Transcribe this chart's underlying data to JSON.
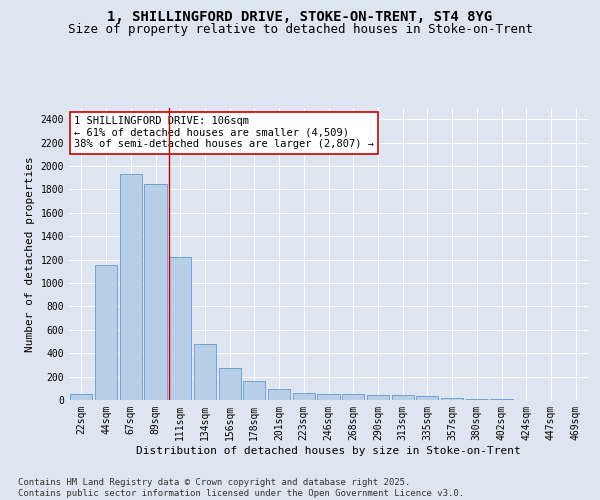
{
  "title_line1": "1, SHILLINGFORD DRIVE, STOKE-ON-TRENT, ST4 8YG",
  "title_line2": "Size of property relative to detached houses in Stoke-on-Trent",
  "xlabel": "Distribution of detached houses by size in Stoke-on-Trent",
  "ylabel": "Number of detached properties",
  "bar_labels": [
    "22sqm",
    "44sqm",
    "67sqm",
    "89sqm",
    "111sqm",
    "134sqm",
    "156sqm",
    "178sqm",
    "201sqm",
    "223sqm",
    "246sqm",
    "268sqm",
    "290sqm",
    "313sqm",
    "335sqm",
    "357sqm",
    "380sqm",
    "402sqm",
    "424sqm",
    "447sqm",
    "469sqm"
  ],
  "bar_values": [
    50,
    1150,
    1930,
    1850,
    1220,
    480,
    270,
    160,
    90,
    60,
    55,
    50,
    45,
    40,
    30,
    20,
    10,
    5,
    3,
    2,
    1
  ],
  "bar_color": "#b8cfe8",
  "bar_edge_color": "#6699cc",
  "vline_x": 3.55,
  "vline_color": "#cc0000",
  "annotation_text": "1 SHILLINGFORD DRIVE: 106sqm\n← 61% of detached houses are smaller (4,509)\n38% of semi-detached houses are larger (2,807) →",
  "annotation_box_color": "#ffffff",
  "annotation_box_edge": "#cc0000",
  "ylim": [
    0,
    2500
  ],
  "yticks": [
    0,
    200,
    400,
    600,
    800,
    1000,
    1200,
    1400,
    1600,
    1800,
    2000,
    2200,
    2400
  ],
  "bg_color": "#dde6f0",
  "plot_bg_color": "#dde6f0",
  "grid_color": "#ffffff",
  "footnote": "Contains HM Land Registry data © Crown copyright and database right 2025.\nContains public sector information licensed under the Open Government Licence v3.0.",
  "title_fontsize": 10,
  "subtitle_fontsize": 9,
  "axis_label_fontsize": 8,
  "tick_fontsize": 7,
  "annot_fontsize": 7.5,
  "footnote_fontsize": 6.5
}
